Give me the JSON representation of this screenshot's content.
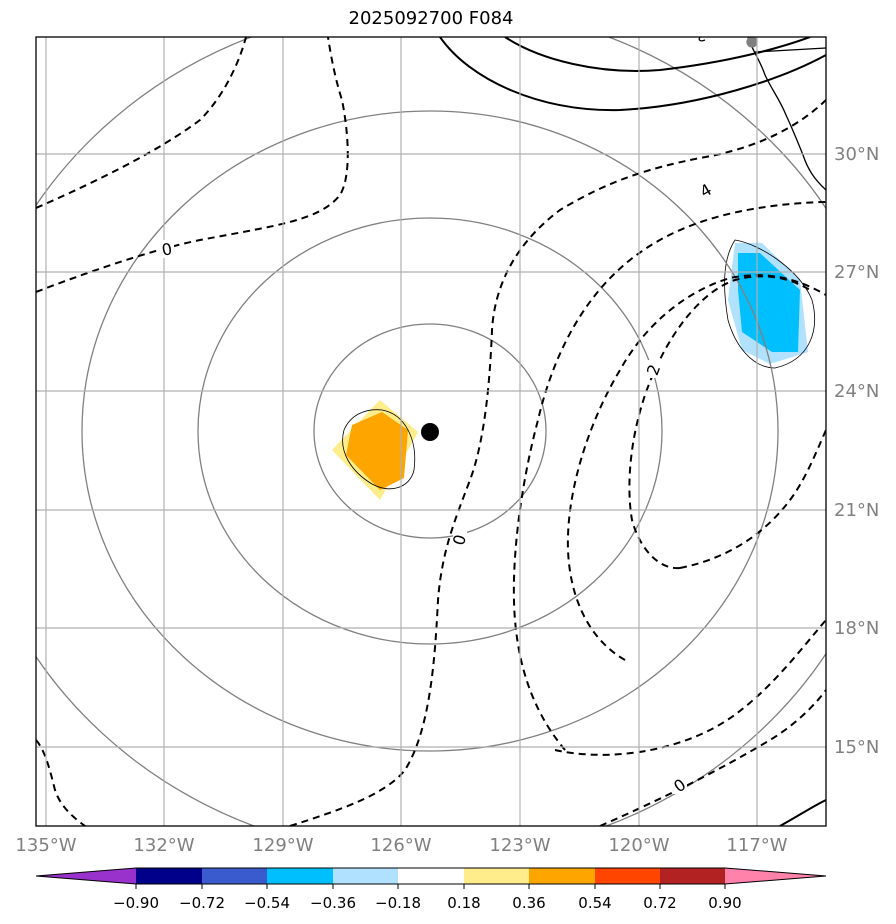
{
  "title": "2025092700 F084",
  "axes": {
    "lon_labels": [
      "135°W",
      "132°W",
      "129°W",
      "126°W",
      "123°W",
      "120°W",
      "117°W"
    ],
    "lat_labels": [
      "30°N",
      "27°N",
      "24°N",
      "21°N",
      "18°N",
      "15°N"
    ]
  },
  "contour_labels": [
    "0",
    "0",
    "2",
    "4",
    "0"
  ],
  "colorbar": {
    "ticks": [
      "−0.90",
      "−0.72",
      "−0.54",
      "−0.36",
      "−0.18",
      "0.18",
      "0.36",
      "0.54",
      "0.72",
      "0.90"
    ],
    "colors": [
      "#9932cc",
      "#00008b",
      "#3a5bcd",
      "#00bfff",
      "#b0e2ff",
      "#ffffff",
      "#ffec8b",
      "#ffa500",
      "#ff4500",
      "#b22222",
      "#ff82ab"
    ]
  },
  "center_marker": {
    "lon": -125.7,
    "lat": 23.0
  },
  "anomaly_regions": [
    {
      "sign": "positive",
      "center_lon": -126.5,
      "center_lat": 22.5,
      "max_value": 0.54
    },
    {
      "sign": "negative",
      "center_lon": -117.0,
      "center_lat": 25.8,
      "min_value": -0.54
    }
  ]
}
